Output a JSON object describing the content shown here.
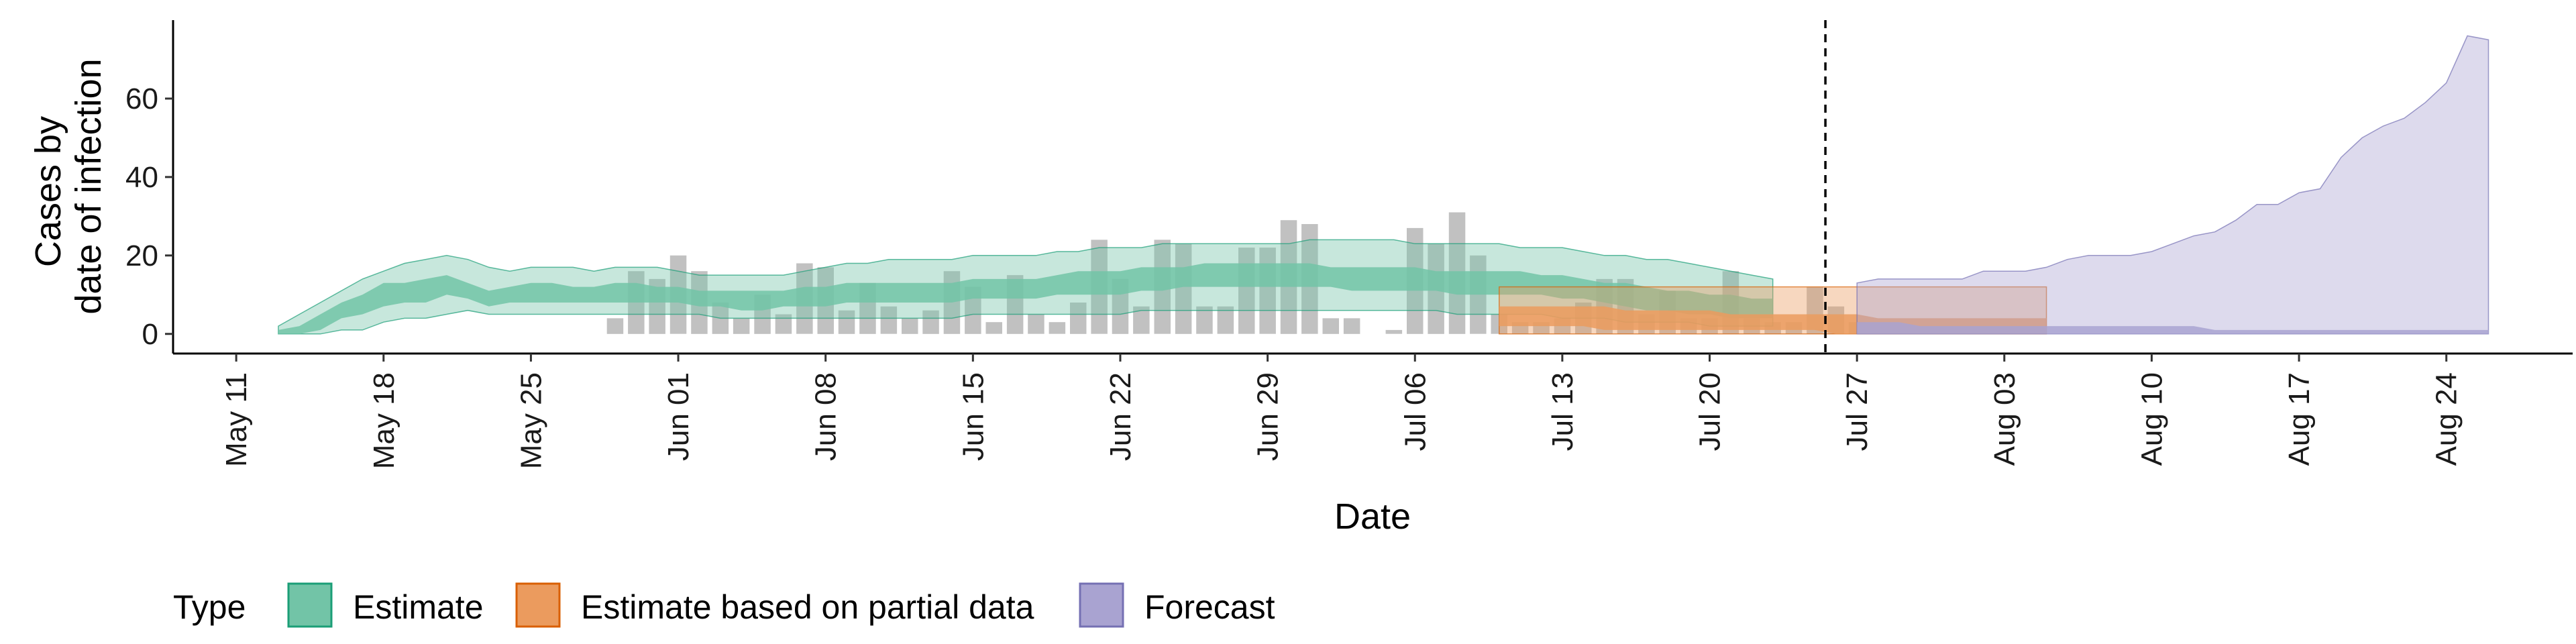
{
  "chart_data": {
    "type": "area",
    "xlabel": "Date",
    "ylabel_lines": [
      "Cases by",
      "date of infection"
    ],
    "x_ticks": [
      "May 11",
      "May 18",
      "May 25",
      "Jun 01",
      "Jun 08",
      "Jun 15",
      "Jun 22",
      "Jun 29",
      "Jul 06",
      "Jul 13",
      "Jul 20",
      "Jul 27",
      "Aug 03",
      "Aug 10",
      "Aug 17",
      "Aug 24"
    ],
    "y_ticks": [
      0,
      20,
      40,
      60
    ],
    "ylim": [
      -5,
      80
    ],
    "xlim": [
      "2020-05-08",
      "2020-08-30"
    ],
    "forecast_cutoff": "2020-07-26",
    "legend": {
      "title": "Type",
      "entries": [
        {
          "label": "Estimate",
          "fill": "#72c4a7",
          "stroke": "#1b9e77"
        },
        {
          "label": "Estimate based on partial data",
          "fill": "#eb9b5e",
          "stroke": "#d95f02"
        },
        {
          "label": "Forecast",
          "fill": "#a9a3d1",
          "stroke": "#7570b3"
        }
      ]
    },
    "observed_cases": {
      "start": "2020-05-29",
      "values": [
        4,
        16,
        14,
        20,
        16,
        8,
        4,
        10,
        5,
        18,
        17,
        6,
        13,
        7,
        4,
        6,
        16,
        12,
        3,
        15,
        5,
        3,
        8,
        24,
        14,
        7,
        24,
        23,
        7,
        7,
        22,
        22,
        29,
        28,
        4,
        4,
        0,
        1,
        27,
        23,
        31,
        20,
        5,
        3,
        3,
        4,
        8,
        14,
        14,
        5,
        11,
        4,
        4,
        16,
        4,
        3,
        3,
        12,
        7,
        3
      ]
    },
    "series": [
      {
        "name": "Estimate",
        "start": "2020-05-13",
        "median": [
          0,
          1,
          3,
          6,
          8,
          10,
          11,
          11,
          13,
          11,
          9,
          10,
          11,
          11,
          10,
          10,
          11,
          11,
          10,
          10,
          9,
          9,
          8,
          8,
          9,
          10,
          10,
          11,
          10,
          10,
          10,
          11,
          11,
          12,
          12,
          11,
          12,
          12,
          13,
          13,
          13,
          14,
          14,
          14,
          15,
          15,
          15,
          15,
          15,
          15,
          15,
          15,
          14,
          14,
          14,
          14,
          13,
          13,
          13,
          13,
          13,
          12,
          12,
          11,
          10,
          9,
          9,
          8,
          8,
          7,
          7,
          7
        ],
        "inner_low": [
          0,
          0,
          1,
          4,
          5,
          7,
          8,
          8,
          10,
          9,
          7,
          8,
          8,
          8,
          8,
          8,
          8,
          8,
          8,
          8,
          7,
          7,
          6,
          6,
          7,
          7,
          7,
          8,
          8,
          8,
          8,
          8,
          8,
          9,
          9,
          9,
          9,
          10,
          10,
          10,
          10,
          11,
          11,
          12,
          12,
          12,
          12,
          12,
          12,
          12,
          12,
          11,
          11,
          11,
          11,
          11,
          10,
          10,
          10,
          10,
          10,
          9,
          9,
          8,
          7,
          6,
          6,
          5,
          5,
          4,
          4,
          4
        ],
        "inner_high": [
          1,
          2,
          5,
          8,
          10,
          13,
          13,
          14,
          15,
          13,
          11,
          12,
          13,
          13,
          12,
          12,
          13,
          13,
          12,
          12,
          11,
          11,
          11,
          11,
          11,
          12,
          12,
          13,
          13,
          13,
          13,
          13,
          13,
          14,
          14,
          14,
          14,
          15,
          16,
          16,
          16,
          17,
          17,
          17,
          18,
          18,
          18,
          18,
          18,
          18,
          17,
          17,
          17,
          17,
          17,
          16,
          16,
          16,
          16,
          16,
          15,
          15,
          14,
          13,
          13,
          12,
          11,
          11,
          10,
          10,
          9,
          9
        ],
        "outer_low": [
          0,
          0,
          0,
          1,
          1,
          3,
          4,
          4,
          5,
          6,
          5,
          5,
          5,
          5,
          5,
          5,
          5,
          5,
          5,
          5,
          5,
          4,
          4,
          4,
          4,
          4,
          4,
          4,
          4,
          4,
          4,
          4,
          4,
          5,
          5,
          5,
          5,
          5,
          5,
          5,
          5,
          6,
          6,
          6,
          6,
          6,
          6,
          6,
          6,
          6,
          6,
          6,
          6,
          6,
          6,
          6,
          5,
          5,
          5,
          5,
          5,
          4,
          4,
          4,
          3,
          3,
          3,
          3,
          2,
          2,
          2,
          2
        ],
        "outer_high": [
          2,
          5,
          8,
          11,
          14,
          16,
          18,
          19,
          20,
          19,
          17,
          16,
          17,
          17,
          17,
          16,
          17,
          17,
          17,
          16,
          15,
          15,
          15,
          15,
          15,
          16,
          17,
          18,
          18,
          19,
          19,
          19,
          19,
          20,
          20,
          20,
          20,
          21,
          21,
          22,
          22,
          22,
          23,
          23,
          23,
          23,
          23,
          23,
          23,
          24,
          24,
          24,
          24,
          24,
          23,
          23,
          23,
          23,
          23,
          22,
          22,
          22,
          21,
          20,
          20,
          19,
          19,
          18,
          17,
          16,
          15,
          14
        ]
      },
      {
        "name": "Estimate based on partial data",
        "start": "2020-07-10",
        "median": [
          5,
          5,
          5,
          5,
          5,
          4,
          4,
          4,
          4,
          3,
          3,
          3,
          3,
          3,
          3,
          3,
          3,
          2,
          2,
          2,
          2,
          2,
          2,
          2,
          2,
          2,
          2
        ],
        "inner_low": [
          2,
          2,
          2,
          2,
          2,
          1,
          1,
          1,
          1,
          1,
          1,
          1,
          1,
          1,
          1,
          1,
          0,
          0,
          0,
          0,
          0,
          0,
          0,
          0,
          0,
          0,
          0
        ],
        "inner_high": [
          7,
          7,
          7,
          7,
          7,
          7,
          6,
          6,
          6,
          6,
          6,
          5,
          5,
          5,
          5,
          5,
          5,
          5,
          4,
          4,
          4,
          4,
          4,
          4,
          4,
          4,
          4
        ],
        "outer_low": [
          0,
          0,
          0,
          0,
          0,
          0,
          0,
          0,
          0,
          0,
          0,
          0,
          0,
          0,
          0,
          0,
          0,
          0,
          0,
          0,
          0,
          0,
          0,
          0,
          0,
          0,
          0
        ],
        "outer_high": [
          12,
          12,
          12,
          12,
          12,
          12,
          12,
          12,
          12,
          12,
          12,
          12,
          12,
          12,
          12,
          12,
          12,
          12,
          12,
          12,
          12,
          12,
          12,
          12,
          12,
          12,
          12
        ]
      },
      {
        "name": "Forecast",
        "start": "2020-07-27",
        "inner_low": [
          0,
          0,
          0,
          0,
          0,
          0,
          0,
          0,
          0,
          0,
          0,
          0,
          0,
          0,
          0,
          0,
          0,
          0,
          0,
          0,
          0,
          0,
          0,
          0,
          0,
          0,
          0,
          0,
          0,
          0,
          0
        ],
        "inner_high": [
          3,
          3,
          3,
          2,
          2,
          2,
          2,
          2,
          2,
          2,
          2,
          2,
          2,
          2,
          2,
          2,
          2,
          1,
          1,
          1,
          1,
          1,
          1,
          1,
          1,
          1,
          1,
          1,
          1,
          1,
          1
        ],
        "outer_low": [
          0,
          0,
          0,
          0,
          0,
          0,
          0,
          0,
          0,
          0,
          0,
          0,
          0,
          0,
          0,
          0,
          0,
          0,
          0,
          0,
          0,
          0,
          0,
          0,
          0,
          0,
          0,
          0,
          0,
          0,
          0
        ],
        "outer_high": [
          13,
          14,
          14,
          14,
          14,
          14,
          16,
          16,
          16,
          17,
          19,
          20,
          20,
          20,
          21,
          23,
          25,
          26,
          29,
          33,
          33,
          36,
          37,
          45,
          50,
          53,
          55,
          59,
          64,
          76,
          75
        ]
      }
    ]
  }
}
